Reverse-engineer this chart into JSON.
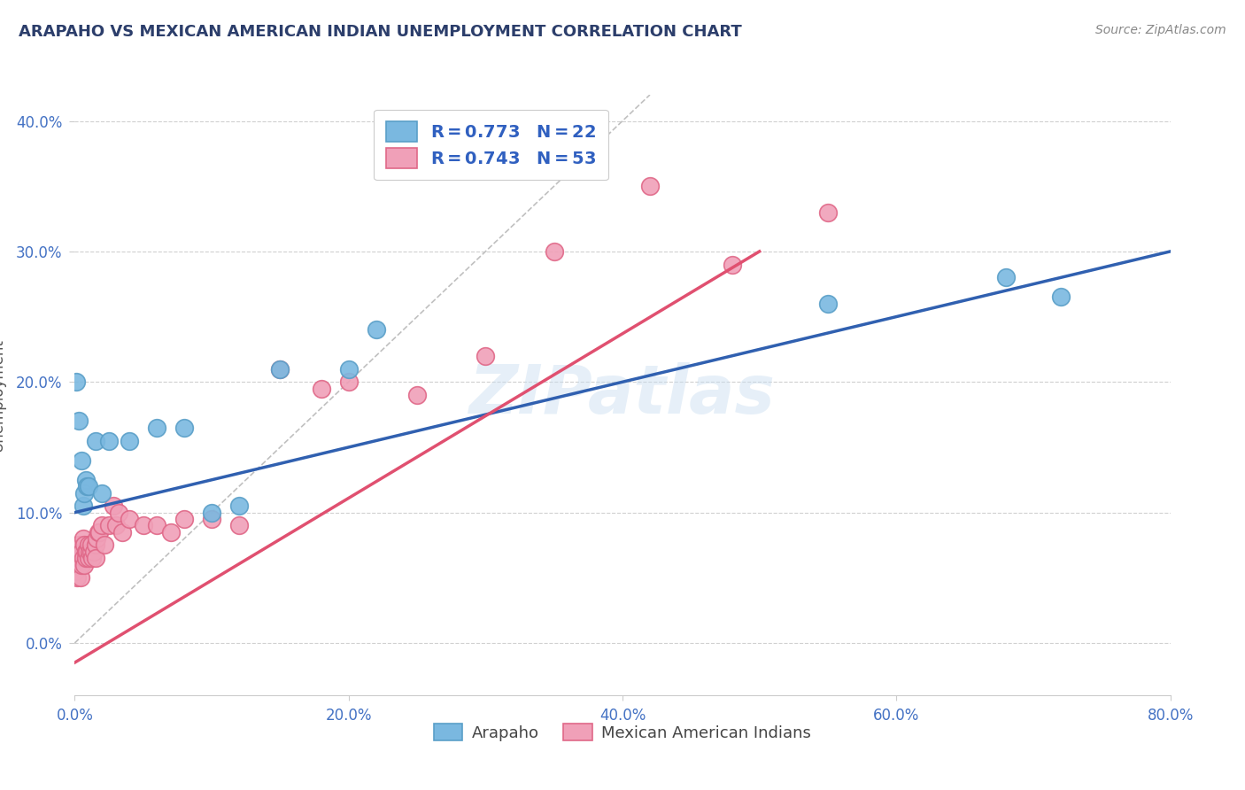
{
  "title": "ARAPAHO VS MEXICAN AMERICAN INDIAN UNEMPLOYMENT CORRELATION CHART",
  "source": "Source: ZipAtlas.com",
  "ylabel": "Unemployment",
  "arapaho_color": "#7ab8e0",
  "arapaho_edge": "#5a9fc8",
  "mexican_color": "#f0a0b8",
  "mexican_edge": "#e06888",
  "trend_arapaho_color": "#3060b0",
  "trend_mexican_color": "#e05070",
  "diag_color": "#c0c0c0",
  "bg_color": "#ffffff",
  "grid_color": "#d0d0d0",
  "title_color": "#2c3e6b",
  "tick_color": "#4472c4",
  "legend_color": "#3060c0",
  "arapaho_x": [
    0.001,
    0.003,
    0.005,
    0.006,
    0.007,
    0.008,
    0.009,
    0.01,
    0.015,
    0.02,
    0.025,
    0.04,
    0.06,
    0.08,
    0.1,
    0.12,
    0.15,
    0.2,
    0.22,
    0.55,
    0.68,
    0.72
  ],
  "arapaho_y": [
    0.2,
    0.17,
    0.14,
    0.105,
    0.115,
    0.125,
    0.12,
    0.12,
    0.155,
    0.115,
    0.155,
    0.155,
    0.165,
    0.165,
    0.1,
    0.105,
    0.21,
    0.21,
    0.24,
    0.26,
    0.28,
    0.265
  ],
  "mexican_x": [
    0.001,
    0.001,
    0.002,
    0.002,
    0.002,
    0.003,
    0.003,
    0.004,
    0.004,
    0.005,
    0.005,
    0.006,
    0.006,
    0.007,
    0.007,
    0.008,
    0.008,
    0.009,
    0.01,
    0.01,
    0.011,
    0.012,
    0.012,
    0.013,
    0.014,
    0.015,
    0.015,
    0.016,
    0.017,
    0.018,
    0.02,
    0.022,
    0.025,
    0.028,
    0.03,
    0.032,
    0.035,
    0.04,
    0.05,
    0.06,
    0.07,
    0.08,
    0.1,
    0.12,
    0.15,
    0.18,
    0.2,
    0.25,
    0.3,
    0.35,
    0.42,
    0.48,
    0.55
  ],
  "mexican_y": [
    0.065,
    0.055,
    0.07,
    0.06,
    0.05,
    0.075,
    0.065,
    0.065,
    0.05,
    0.07,
    0.06,
    0.08,
    0.065,
    0.075,
    0.06,
    0.07,
    0.065,
    0.07,
    0.075,
    0.065,
    0.07,
    0.07,
    0.075,
    0.065,
    0.07,
    0.075,
    0.065,
    0.08,
    0.085,
    0.085,
    0.09,
    0.075,
    0.09,
    0.105,
    0.09,
    0.1,
    0.085,
    0.095,
    0.09,
    0.09,
    0.085,
    0.095,
    0.095,
    0.09,
    0.21,
    0.195,
    0.2,
    0.19,
    0.22,
    0.3,
    0.35,
    0.29,
    0.33
  ],
  "trend_a_x0": 0.0,
  "trend_a_y0": 0.1,
  "trend_a_x1": 0.8,
  "trend_a_y1": 0.3,
  "trend_m_x0": 0.0,
  "trend_m_y0": -0.015,
  "trend_m_x1": 0.5,
  "trend_m_y1": 0.3,
  "xmin": 0.0,
  "xmax": 0.8,
  "ymin": -0.04,
  "ymax": 0.42
}
